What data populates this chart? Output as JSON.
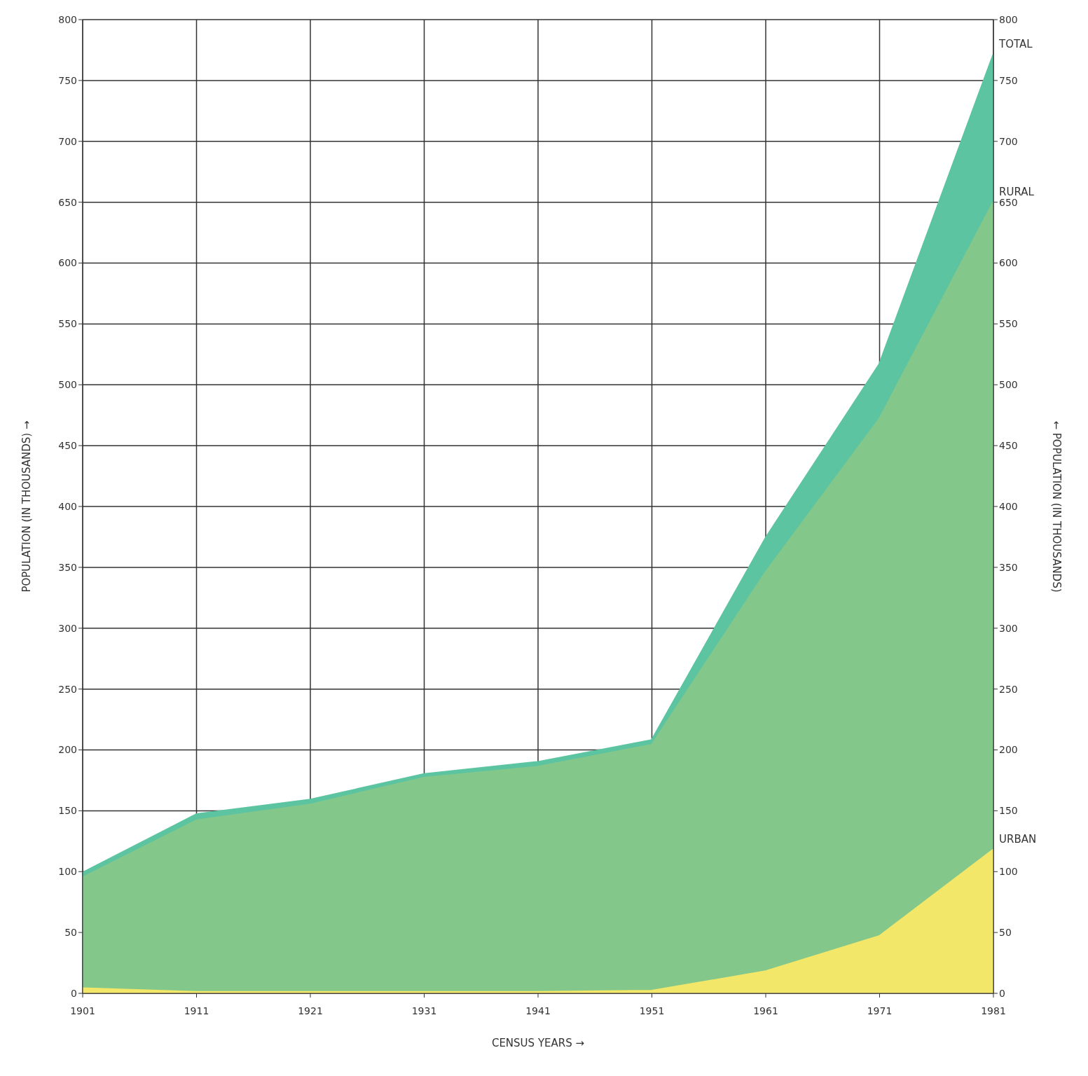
{
  "chart_data": {
    "type": "area",
    "xlabel": "CENSUS YEARS →",
    "ylabel": "POPULATION (IN THOUSANDS) →",
    "y2label": "← POPULATION (IN THOUSANDS)",
    "x": [
      1901,
      1911,
      1921,
      1931,
      1941,
      1951,
      1961,
      1971,
      1981
    ],
    "xlim": [
      1901,
      1981
    ],
    "xticks": [
      1901,
      1911,
      1921,
      1931,
      1941,
      1951,
      1961,
      1971,
      1981
    ],
    "ylim": [
      0,
      800
    ],
    "yticks": [
      0,
      50,
      100,
      150,
      200,
      250,
      300,
      350,
      400,
      450,
      500,
      550,
      600,
      650,
      700,
      750,
      800
    ],
    "y2lim": [
      0,
      800
    ],
    "y2ticks": [
      0,
      50,
      100,
      150,
      200,
      250,
      300,
      350,
      400,
      450,
      500,
      550,
      600,
      650,
      700,
      750,
      800
    ],
    "grid": true,
    "series": [
      {
        "name": "TOTAL",
        "color": "#5cc4a0",
        "values": [
          99,
          147,
          159,
          180,
          190,
          208,
          374,
          517,
          771
        ]
      },
      {
        "name": "RURAL",
        "color": "#84c78a",
        "values": [
          95,
          142,
          155,
          177,
          186,
          204,
          346,
          472,
          650
        ]
      },
      {
        "name": "URBAN",
        "color": "#f3e76a",
        "values": [
          4,
          1,
          1,
          1,
          1,
          2,
          18,
          47,
          118
        ]
      }
    ]
  }
}
